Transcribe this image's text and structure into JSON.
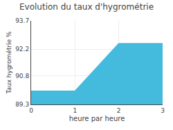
{
  "chart_data": {
    "type": "area",
    "title": "Evolution du taux d'hygrométrie",
    "xlabel": "heure par heure",
    "ylabel": "Taux hygrométrie %",
    "x": [
      0,
      1,
      2,
      3
    ],
    "values": [
      90.0,
      90.0,
      92.5,
      92.5
    ],
    "color": "#44bbdd",
    "xlim": [
      0,
      3
    ],
    "ylim": [
      89.3,
      93.7
    ],
    "xticks": [
      0,
      1,
      2,
      3
    ],
    "yticks": [
      89.3,
      90.8,
      92.2,
      93.7
    ],
    "grid": true
  }
}
